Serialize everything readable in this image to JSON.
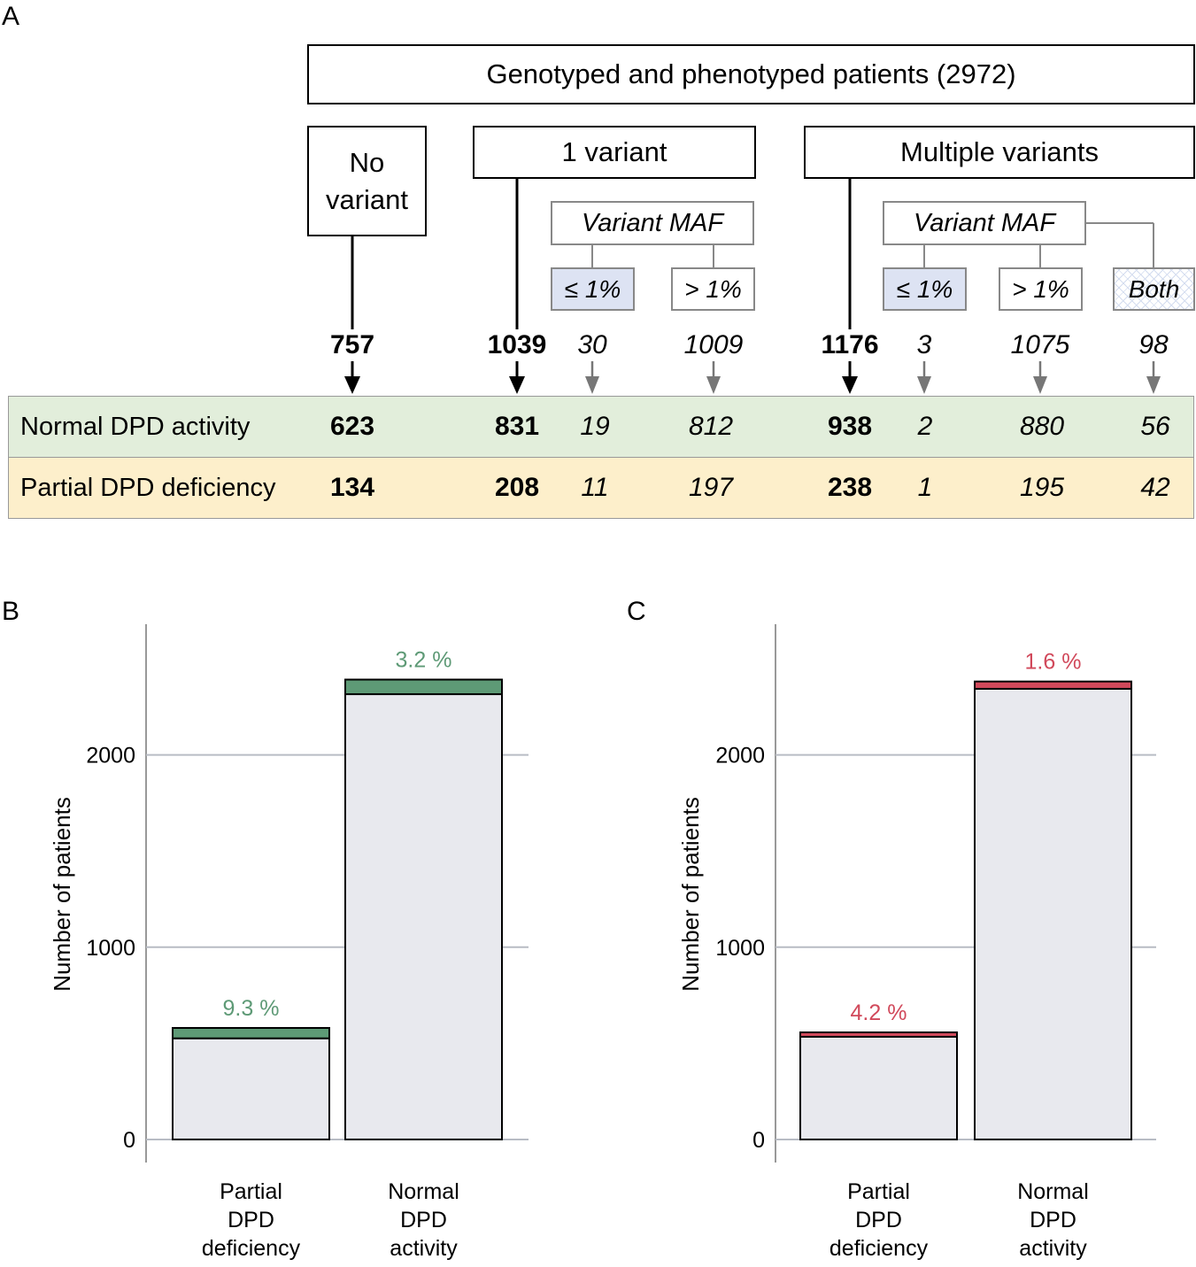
{
  "diagram": {
    "label": "A",
    "title": "Genotyped and phenotyped patients (2972)",
    "groups": [
      {
        "label": "No variant",
        "total": 757
      },
      {
        "label": "1 variant",
        "total": 1039
      },
      {
        "label": "Multiple variants",
        "total": 1176
      }
    ],
    "maf": [
      {
        "label": "Variant MAF",
        "subgroups": [
          {
            "label": "≤ 1%",
            "n": 30
          },
          {
            "label": "> 1%",
            "n": 1009
          }
        ]
      },
      {
        "label": "Variant MAF",
        "subgroups": [
          {
            "label": "≤ 1%",
            "n": 3
          },
          {
            "label": "> 1%",
            "n": 1075
          },
          {
            "label": "Both",
            "n": 98
          }
        ]
      }
    ],
    "rows": [
      {
        "label": "Normal DPD activity",
        "values": [
          623,
          831,
          19,
          812,
          938,
          2,
          880,
          56
        ]
      },
      {
        "label": "Partial DPD deficiency",
        "values": [
          134,
          208,
          11,
          197,
          238,
          1,
          195,
          42
        ]
      }
    ]
  },
  "chart_data": [
    {
      "type": "bar",
      "label": "B",
      "ylabel": "Number of patients",
      "categories": [
        "Partial DPD deficiency",
        "Normal DPD activity"
      ],
      "series": [
        {
          "color": "#e8e9ee",
          "values": [
            526,
            2316
          ]
        },
        {
          "color": "#5e9a76",
          "values": [
            54,
            76
          ]
        }
      ],
      "annotations": [
        "9.3 %",
        "3.2 %"
      ],
      "ylim": [
        -120,
        2680
      ],
      "yticks": [
        0,
        1000,
        2000
      ],
      "grid": true
    },
    {
      "type": "bar",
      "label": "C",
      "ylabel": "Number of patients",
      "categories": [
        "Partial DPD deficiency",
        "Normal DPD activity"
      ],
      "series": [
        {
          "color": "#e8e9ee",
          "values": [
            534,
            2344
          ]
        },
        {
          "color": "#d1495b",
          "values": [
            23,
            38
          ]
        }
      ],
      "annotations": [
        "4.2 %",
        "1.6 %"
      ],
      "ylim": [
        -120,
        2680
      ],
      "yticks": [
        0,
        1000,
        2000
      ],
      "grid": true
    }
  ]
}
